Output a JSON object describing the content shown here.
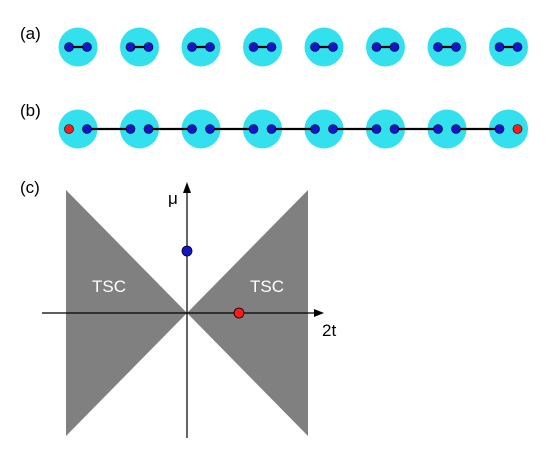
{
  "panels": {
    "a": {
      "label": "(a)",
      "site_count": 8,
      "bonds": "intra"
    },
    "b": {
      "label": "(b)",
      "site_count": 8,
      "bonds": "inter",
      "edge_color": "#ff1a1a"
    },
    "c": {
      "label": "(c)"
    }
  },
  "phase_diagram": {
    "x_axis_label": "2t",
    "y_axis_label": "μ",
    "region_left_label": "TSC",
    "region_right_label": "TSC",
    "point_a": {
      "x": 0,
      "y": 1,
      "color": "#1414cc"
    },
    "point_b": {
      "x": 1,
      "y": 0,
      "color": "#ff1a1a"
    }
  },
  "colors": {
    "site_fill": "#33e0ee",
    "dot": "#1414cc",
    "dot_red": "#ff1a1a",
    "region": "#808080"
  }
}
